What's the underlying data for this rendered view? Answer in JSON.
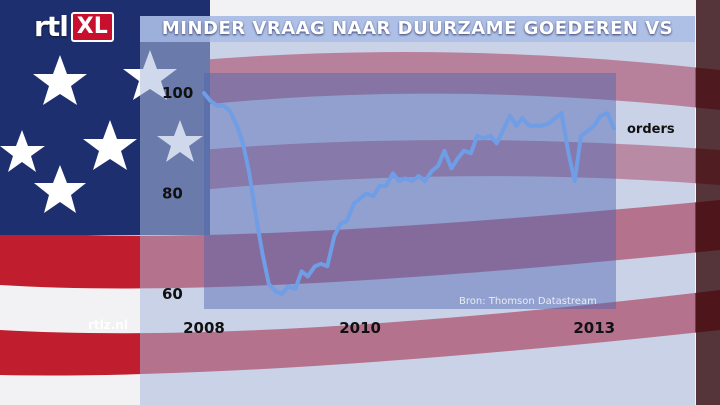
{
  "brand": {
    "logo_text": "rtl",
    "logo_badge": "XL",
    "site": "rtlz.nl"
  },
  "title": "MINDER VRAAG NAAR DUURZAME GOEDEREN VS",
  "source": "Bron: Thomson Datastream",
  "colors": {
    "line": "#6f9de6",
    "title_bar": "#a8bce4",
    "stripe_red": "#c01e2e",
    "flag_blue": "#1d2f6e"
  },
  "chart_data": {
    "type": "line",
    "title": "MINDER VRAAG NAAR DUURZAME GOEDEREN VS",
    "xlabel": "",
    "ylabel": "",
    "x_ticks": [
      "2008",
      "2010",
      "2013"
    ],
    "y_ticks": [
      "60",
      "80",
      "100"
    ],
    "xlim": [
      2008.0,
      2013.33
    ],
    "ylim": [
      57,
      104
    ],
    "series": [
      {
        "name": "orders",
        "x": [
          2008.0,
          2008.08,
          2008.17,
          2008.25,
          2008.33,
          2008.42,
          2008.5,
          2008.58,
          2008.67,
          2008.75,
          2008.83,
          2008.92,
          2009.0,
          2009.08,
          2009.17,
          2009.25,
          2009.33,
          2009.42,
          2009.5,
          2009.58,
          2009.67,
          2009.75,
          2009.83,
          2009.92,
          2010.0,
          2010.08,
          2010.17,
          2010.25,
          2010.33,
          2010.42,
          2010.5,
          2010.58,
          2010.67,
          2010.75,
          2010.83,
          2010.92,
          2011.0,
          2011.08,
          2011.17,
          2011.25,
          2011.33,
          2011.42,
          2011.5,
          2011.58,
          2011.67,
          2011.75,
          2011.83,
          2011.92,
          2012.0,
          2012.08,
          2012.17,
          2012.25,
          2012.33,
          2012.42,
          2012.5,
          2012.58,
          2012.67,
          2012.75,
          2012.83,
          2012.92,
          2013.0,
          2013.08,
          2013.17,
          2013.25
        ],
        "values": [
          100,
          98.5,
          97.5,
          97.5,
          96.5,
          93.5,
          90,
          84,
          75,
          68,
          62,
          60.5,
          60,
          61.5,
          61,
          64.5,
          63.5,
          65.5,
          66,
          65.5,
          71.5,
          74,
          74.5,
          78,
          79,
          80,
          79.5,
          81.5,
          81.5,
          84,
          82.5,
          83,
          82.5,
          83.5,
          82.5,
          84.5,
          85.5,
          88.5,
          85,
          87,
          88.5,
          88,
          91.5,
          91,
          91.5,
          90,
          92.5,
          95.5,
          93.5,
          95,
          93.5,
          93.5,
          93.5,
          94,
          95,
          96,
          88,
          82.5,
          91.5,
          92.5,
          93.5,
          95.5,
          96,
          93
        ]
      }
    ],
    "legend": "end-label",
    "grid": false
  }
}
